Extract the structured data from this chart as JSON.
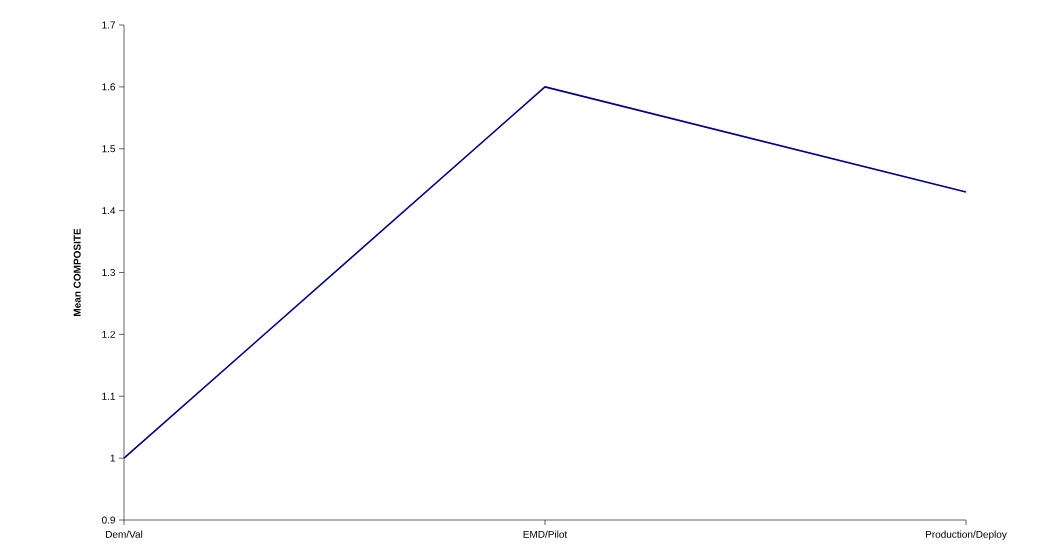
{
  "chart_data": {
    "type": "line",
    "ylabel": "Mean COMPOSITE",
    "categories": [
      "Dem/Val",
      "EMD/Pilot",
      "Production/Deploy"
    ],
    "values": [
      1.0,
      1.6,
      1.43
    ],
    "color": "#000080",
    "ylim": [
      0.9,
      1.7
    ],
    "yticks": [
      0.9,
      1,
      1.1,
      1.2,
      1.3,
      1.4,
      1.5,
      1.6,
      1.7
    ],
    "grid": false,
    "marker": "none",
    "line_style": "solid"
  }
}
